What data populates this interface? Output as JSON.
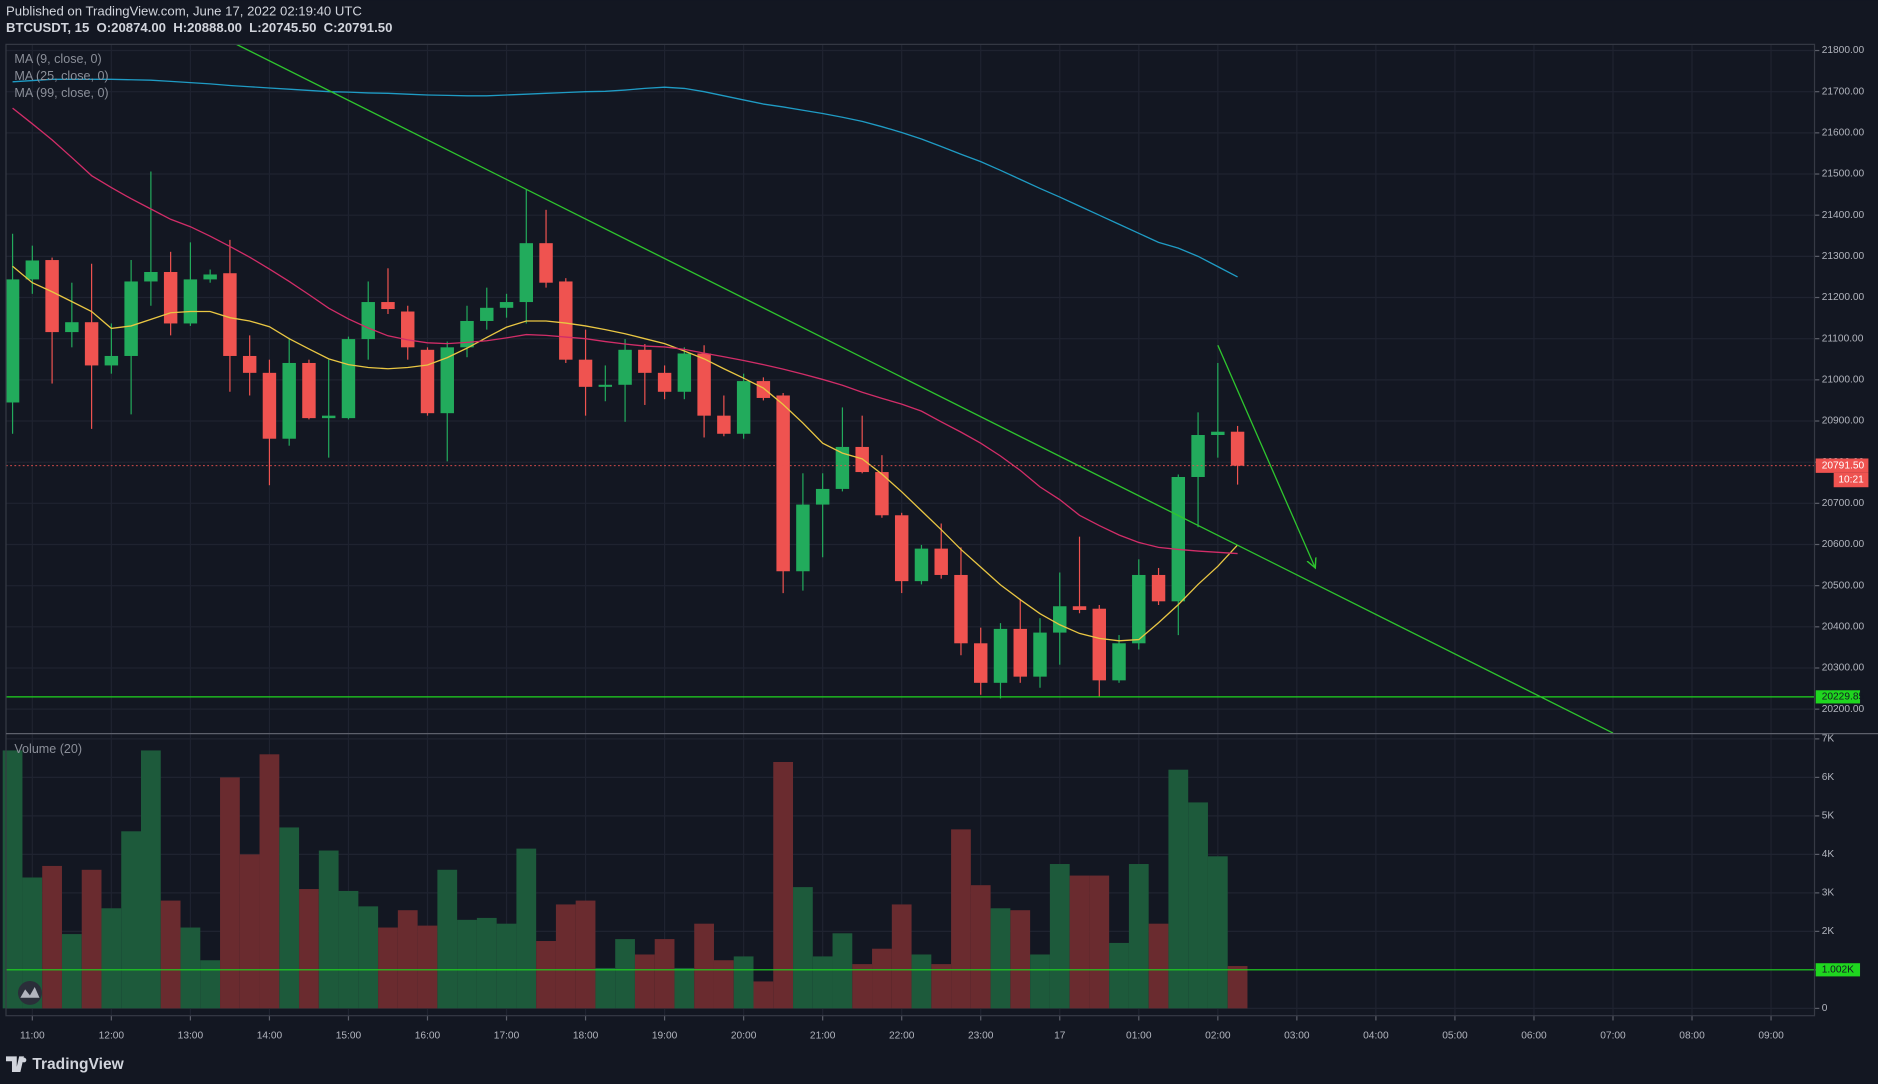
{
  "header": {
    "published": "Published on TradingView.com, June 17, 2022 02:19:40 UTC",
    "symbol": "BTCUSDT, 15",
    "ohlc": [
      "O:20874.00",
      "H:20888.00",
      "L:20745.50",
      "C:20791.50"
    ]
  },
  "footer": {
    "brand": "TradingView"
  },
  "chart_data": [
    {
      "type": "candlestick",
      "x": [
        "10:45",
        "11:00",
        "11:15",
        "11:30",
        "11:45",
        "12:00",
        "12:15",
        "12:30",
        "12:45",
        "13:00",
        "13:15",
        "13:30",
        "13:45",
        "14:00",
        "14:15",
        "14:30",
        "14:45",
        "15:00",
        "15:15",
        "15:30",
        "15:45",
        "16:00",
        "16:15",
        "16:30",
        "16:45",
        "17:00",
        "17:15",
        "17:30",
        "17:45",
        "18:00",
        "18:15",
        "18:30",
        "18:45",
        "19:00",
        "19:15",
        "19:30",
        "19:45",
        "20:00",
        "20:15",
        "20:30",
        "20:45",
        "21:00",
        "21:15",
        "21:30",
        "21:45",
        "22:00",
        "22:15",
        "22:30",
        "22:45",
        "23:00",
        "23:15",
        "23:30",
        "23:45",
        "00:00",
        "00:15",
        "00:30",
        "00:45",
        "01:00",
        "01:15",
        "01:30",
        "01:45",
        "02:00",
        "02:15"
      ],
      "open": [
        20945,
        21244,
        21291,
        21116,
        21140,
        21035,
        21058,
        21239,
        21262,
        21137,
        21244,
        21259,
        21058,
        21017,
        20857,
        21041,
        20907,
        20907,
        21099,
        21189,
        21166,
        21073,
        20919,
        21079,
        21143,
        21175,
        21189,
        21332,
        21239,
        21049,
        20983,
        20988,
        21073,
        21017,
        20971,
        21064,
        20913,
        20869,
        20997,
        20962,
        20535,
        20697,
        20735,
        20837,
        20776,
        20671,
        20511,
        20590,
        20526,
        20360,
        20264,
        20395,
        20279,
        20386,
        20450,
        20444,
        20270,
        20360,
        20526,
        20462,
        20764,
        20866,
        20874
      ],
      "high": [
        21355,
        21326,
        21297,
        21236,
        21282,
        21137,
        21291,
        21506,
        21311,
        21334,
        21268,
        21340,
        21108,
        21049,
        21102,
        21049,
        21049,
        21105,
        21239,
        21271,
        21180,
        21079,
        21093,
        21180,
        21224,
        21209,
        21462,
        21413,
        21247,
        21122,
        21035,
        21099,
        21087,
        21035,
        21079,
        21084,
        20962,
        21015,
        21006,
        20968,
        20773,
        20773,
        20933,
        20913,
        20817,
        20677,
        20599,
        20651,
        20593,
        20398,
        20409,
        20468,
        20421,
        20532,
        20619,
        20453,
        20380,
        20564,
        20543,
        20770,
        20921,
        21041,
        20888
      ],
      "low": [
        20869,
        21209,
        20991,
        21079,
        20881,
        21015,
        20916,
        21180,
        21108,
        21131,
        21236,
        20971,
        20962,
        20744,
        20840,
        20904,
        20811,
        20904,
        21049,
        21160,
        21049,
        20913,
        20802,
        21055,
        21122,
        21151,
        21137,
        21224,
        21041,
        20913,
        20948,
        20898,
        20939,
        20953,
        20953,
        20860,
        20863,
        20857,
        20950,
        20482,
        20488,
        20569,
        20729,
        20773,
        20665,
        20482,
        20503,
        20517,
        20331,
        20235,
        20226,
        20264,
        20252,
        20308,
        20433,
        20229,
        20264,
        20345,
        20453,
        20380,
        20642,
        20811,
        20745.5
      ],
      "close": [
        21244,
        21290,
        21116,
        21140,
        21035,
        21058,
        21239,
        21262,
        21137,
        21244,
        21256,
        21058,
        21017,
        20857,
        21041,
        20907,
        20913,
        21099,
        21189,
        21172,
        21079,
        20919,
        21079,
        21143,
        21175,
        21189,
        21332,
        21236,
        21049,
        20983,
        20988,
        21073,
        21017,
        20971,
        21064,
        20913,
        20869,
        20997,
        20956,
        20535,
        20697,
        20735,
        20837,
        20776,
        20671,
        20511,
        20590,
        20526,
        20360,
        20264,
        20395,
        20279,
        20386,
        20450,
        20441,
        20270,
        20360,
        20526,
        20462,
        20764,
        20866,
        20874,
        20791.5
      ],
      "up_color": "#22ab5c",
      "down_color": "#ef5350",
      "series": [
        {
          "name": "MA (9, close, 0)",
          "color": "#e9c643",
          "values": [
            21276,
            21236,
            21214,
            21190,
            21166,
            21125,
            21131,
            21147,
            21163,
            21166,
            21166,
            21151,
            21143,
            21129,
            21100,
            21075,
            21051,
            21037,
            21030,
            21027,
            21030,
            21036,
            21054,
            21077,
            21103,
            21128,
            21143,
            21143,
            21138,
            21131,
            21122,
            21112,
            21100,
            21088,
            21070,
            21051,
            21027,
            21004,
            20980,
            20940,
            20895,
            20846,
            20822,
            20808,
            20771,
            20728,
            20682,
            20636,
            20588,
            20545,
            20502,
            20466,
            20432,
            20405,
            20384,
            20372,
            20366,
            20369,
            20410,
            20454,
            20503,
            20547,
            20599
          ]
        },
        {
          "name": "MA (25, close, 0)",
          "color": "#d12d68",
          "values": [
            21660,
            21622,
            21583,
            21540,
            21496,
            21467,
            21440,
            21415,
            21390,
            21372,
            21349,
            21324,
            21298,
            21269,
            21239,
            21207,
            21174,
            21148,
            21126,
            21107,
            21097,
            21090,
            21088,
            21091,
            21095,
            21102,
            21110,
            21108,
            21104,
            21100,
            21093,
            21087,
            21082,
            21080,
            21074,
            21065,
            21056,
            21047,
            21037,
            21026,
            21014,
            21001,
            20987,
            20970,
            20955,
            20941,
            20924,
            20898,
            20873,
            20846,
            20815,
            20780,
            20740,
            20709,
            20671,
            20646,
            20623,
            20605,
            20593,
            20588,
            20584,
            20581,
            20578
          ]
        },
        {
          "name": "MA (99, close, 0)",
          "color": "#1f9bc4",
          "values": [
            21724,
            21727,
            21730,
            21730,
            21730,
            21730,
            21729,
            21728,
            21725,
            21722,
            21719,
            21715,
            21712,
            21709,
            21706,
            21703,
            21700,
            21699,
            21697,
            21696,
            21694,
            21692,
            21691,
            21690,
            21690,
            21692,
            21694,
            21696,
            21698,
            21700,
            21701,
            21704,
            21708,
            21711,
            21708,
            21700,
            21690,
            21680,
            21670,
            21663,
            21655,
            21647,
            21638,
            21628,
            21615,
            21601,
            21585,
            21567,
            21548,
            21530,
            21509,
            21487,
            21465,
            21444,
            21422,
            21400,
            21378,
            21356,
            21334,
            21320,
            21300,
            21275,
            21250
          ]
        }
      ],
      "xlim": [
        "10:40",
        "09:33"
      ],
      "xticks": [
        "11:00",
        "12:00",
        "13:00",
        "14:00",
        "15:00",
        "16:00",
        "17:00",
        "18:00",
        "19:00",
        "20:00",
        "21:00",
        "22:00",
        "23:00",
        {
          "value": "00:00",
          "label": "17"
        },
        "01:00",
        "02:00",
        "03:00",
        "04:00",
        "05:00",
        "06:00",
        "07:00",
        "08:00",
        "09:00"
      ],
      "ylim": [
        20142,
        21815
      ],
      "yticks": [
        {
          "value": 20200,
          "label": "20200.00"
        },
        {
          "value": 20300,
          "label": "20300.00"
        },
        {
          "value": 20400,
          "label": "20400.00"
        },
        {
          "value": 20500,
          "label": "20500.00"
        },
        {
          "value": 20600,
          "label": "20600.00"
        },
        {
          "value": 20700,
          "label": "20700.00"
        },
        {
          "value": 20800,
          "label": "20800.00"
        },
        {
          "value": 20900,
          "label": "20900.00"
        },
        {
          "value": 21000,
          "label": "21000.00"
        },
        {
          "value": 21100,
          "label": "21100.00"
        },
        {
          "value": 21200,
          "label": "21200.00"
        },
        {
          "value": 21300,
          "label": "21300.00"
        },
        {
          "value": 21400,
          "label": "21400.00"
        },
        {
          "value": 21500,
          "label": "21500.00"
        },
        {
          "value": 21600,
          "label": "21600.00"
        },
        {
          "value": 21700,
          "label": "21700.00"
        },
        {
          "value": 21800,
          "label": "21800.00"
        }
      ],
      "grid": true,
      "hlines": [
        {
          "value": 20229.85,
          "label": "20229.85",
          "color": "#1fd61f"
        }
      ],
      "last_price": {
        "value": 20791.5,
        "label": "20791.50",
        "countdown": "10:21",
        "color": "#ef5350"
      },
      "trendlines": [
        {
          "x": [
            "13:35",
            "07:00"
          ],
          "y": [
            21815,
            20142
          ],
          "color": "#2ec52e"
        },
        {
          "x": [
            "02:00",
            "03:14"
          ],
          "y": [
            21084,
            20543
          ],
          "color": "#2ec52e",
          "arrow": true
        }
      ]
    },
    {
      "type": "bar",
      "title": "Volume (20)",
      "values": [
        6700,
        3400,
        3700,
        1930,
        3600,
        2600,
        4600,
        6700,
        2800,
        2100,
        1250,
        6000,
        4000,
        6600,
        4700,
        3100,
        4100,
        3050,
        2650,
        2100,
        2550,
        2150,
        3600,
        2300,
        2350,
        2200,
        4150,
        1750,
        2700,
        2800,
        1050,
        1800,
        1400,
        1800,
        1050,
        2200,
        1250,
        1350,
        700,
        6400,
        3150,
        1350,
        1950,
        1150,
        1550,
        2700,
        1400,
        1150,
        4650,
        3200,
        2600,
        2550,
        1400,
        3750,
        3450,
        3450,
        1700,
        3750,
        2200,
        6200,
        5350,
        3950,
        1100
      ],
      "up_color": "#1d5a3b",
      "down_color": "#6a2b2f",
      "ylim": [
        -190,
        7090
      ],
      "yticks": [
        0,
        {
          "value": 1000,
          "label": "1K"
        },
        {
          "value": 2000,
          "label": "2K"
        },
        {
          "value": 3000,
          "label": "3K"
        },
        {
          "value": 4000,
          "label": "4K"
        },
        {
          "value": 5000,
          "label": "5K"
        },
        {
          "value": 6000,
          "label": "6K"
        },
        {
          "value": 7000,
          "label": "7K"
        }
      ],
      "hlines": [
        {
          "value": 1002,
          "label": "1.002K",
          "color": "#1fd61f"
        }
      ]
    }
  ]
}
